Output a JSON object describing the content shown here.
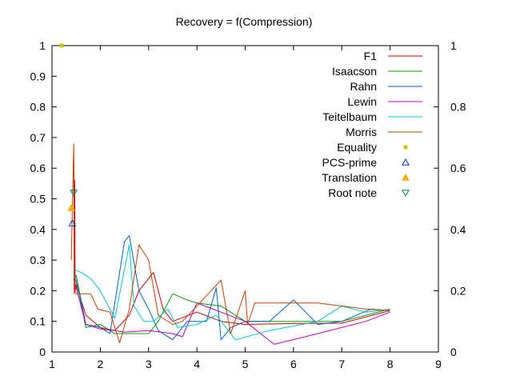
{
  "chart_data": {
    "type": "line",
    "title": "Recovery = f(Compression)",
    "xlabel": "",
    "ylabel": "",
    "xlim": [
      1,
      9
    ],
    "ylim": [
      0,
      1
    ],
    "x_ticks": [
      "1",
      "2",
      "3",
      "4",
      "5",
      "6",
      "7",
      "8",
      "9"
    ],
    "y_ticks": [
      "0",
      "0.1",
      "0.2",
      "0.3",
      "0.4",
      "0.5",
      "0.6",
      "0.7",
      "0.8",
      "0.9",
      "1"
    ],
    "y2_ticks": [
      "0",
      "0.2",
      "0.4",
      "0.6",
      "0.8",
      "1"
    ],
    "grid": false,
    "legend_position": "top-right",
    "series": [
      {
        "name": "F1",
        "kind": "line",
        "color": "#cc0000",
        "points": [
          [
            1.45,
            0.63
          ],
          [
            1.46,
            0.19
          ],
          [
            1.47,
            0.56
          ],
          [
            1.48,
            0.2
          ],
          [
            1.5,
            0.22
          ],
          [
            1.7,
            0.12
          ],
          [
            2.0,
            0.08
          ],
          [
            2.3,
            0.07
          ],
          [
            2.6,
            0.12
          ],
          [
            2.8,
            0.2
          ],
          [
            3.1,
            0.26
          ],
          [
            3.3,
            0.14
          ],
          [
            3.5,
            0.1
          ],
          [
            4.0,
            0.13
          ],
          [
            4.5,
            0.1
          ],
          [
            5.0,
            0.09
          ],
          [
            6.0,
            0.093
          ],
          [
            7.0,
            0.094
          ],
          [
            8.0,
            0.135
          ]
        ]
      },
      {
        "name": "Isaacson",
        "kind": "line",
        "color": "#00a000",
        "points": [
          [
            1.45,
            0.26
          ],
          [
            1.55,
            0.2
          ],
          [
            1.7,
            0.08
          ],
          [
            2.0,
            0.09
          ],
          [
            2.3,
            0.06
          ],
          [
            2.5,
            0.06
          ],
          [
            3.0,
            0.06
          ],
          [
            3.2,
            0.1
          ],
          [
            3.5,
            0.19
          ],
          [
            3.8,
            0.17
          ],
          [
            4.0,
            0.16
          ],
          [
            4.5,
            0.15
          ],
          [
            5.0,
            0.1
          ],
          [
            6.0,
            0.1
          ],
          [
            7.0,
            0.1
          ],
          [
            8.0,
            0.14
          ]
        ]
      },
      {
        "name": "Rahn",
        "kind": "line",
        "color": "#0060c0",
        "points": [
          [
            1.45,
            0.24
          ],
          [
            1.5,
            0.25
          ],
          [
            1.7,
            0.09
          ],
          [
            2.0,
            0.08
          ],
          [
            2.2,
            0.06
          ],
          [
            2.5,
            0.36
          ],
          [
            2.6,
            0.38
          ],
          [
            2.8,
            0.2
          ],
          [
            3.0,
            0.14
          ],
          [
            3.2,
            0.07
          ],
          [
            3.5,
            0.04
          ],
          [
            3.8,
            0.1
          ],
          [
            4.2,
            0.1
          ],
          [
            4.4,
            0.21
          ],
          [
            4.5,
            0.04
          ],
          [
            4.7,
            0.08
          ],
          [
            5.0,
            0.1
          ],
          [
            5.5,
            0.1
          ],
          [
            6.0,
            0.17
          ],
          [
            6.5,
            0.09
          ],
          [
            7.0,
            0.1
          ],
          [
            7.6,
            0.14
          ],
          [
            8.0,
            0.135
          ]
        ]
      },
      {
        "name": "Lewin",
        "kind": "line",
        "color": "#c000c0",
        "points": [
          [
            1.45,
            0.24
          ],
          [
            1.55,
            0.18
          ],
          [
            1.7,
            0.09
          ],
          [
            2.0,
            0.075
          ],
          [
            2.3,
            0.07
          ],
          [
            2.5,
            0.065
          ],
          [
            3.0,
            0.07
          ],
          [
            3.5,
            0.06
          ],
          [
            3.7,
            0.05
          ],
          [
            4.0,
            0.16
          ],
          [
            4.5,
            0.13
          ],
          [
            5.0,
            0.1
          ],
          [
            5.6,
            0.025
          ],
          [
            6.5,
            0.06
          ],
          [
            7.5,
            0.1
          ],
          [
            8.0,
            0.13
          ]
        ]
      },
      {
        "name": "Teitelbaum",
        "kind": "line",
        "color": "#00c8c8",
        "points": [
          [
            1.45,
            0.27
          ],
          [
            1.6,
            0.26
          ],
          [
            1.8,
            0.24
          ],
          [
            2.0,
            0.2
          ],
          [
            2.3,
            0.11
          ],
          [
            2.6,
            0.35
          ],
          [
            2.7,
            0.15
          ],
          [
            2.9,
            0.1
          ],
          [
            3.1,
            0.1
          ],
          [
            3.4,
            0.14
          ],
          [
            3.6,
            0.08
          ],
          [
            4.0,
            0.09
          ],
          [
            4.4,
            0.12
          ],
          [
            4.8,
            0.04
          ],
          [
            5.5,
            0.07
          ],
          [
            6.5,
            0.1
          ],
          [
            7.0,
            0.15
          ],
          [
            7.5,
            0.13
          ],
          [
            8.0,
            0.14
          ]
        ]
      },
      {
        "name": "Morris",
        "kind": "line",
        "color": "#c04000",
        "points": [
          [
            1.4,
            0.3
          ],
          [
            1.45,
            0.68
          ],
          [
            1.47,
            0.2
          ],
          [
            1.5,
            0.19
          ],
          [
            1.8,
            0.19
          ],
          [
            1.95,
            0.14
          ],
          [
            2.2,
            0.13
          ],
          [
            2.4,
            0.03
          ],
          [
            2.6,
            0.14
          ],
          [
            2.8,
            0.35
          ],
          [
            3.0,
            0.3
          ],
          [
            3.2,
            0.12
          ],
          [
            3.5,
            0.09
          ],
          [
            3.7,
            0.1
          ],
          [
            4.0,
            0.15
          ],
          [
            4.5,
            0.235
          ],
          [
            4.7,
            0.06
          ],
          [
            5.0,
            0.2
          ],
          [
            5.05,
            0.09
          ],
          [
            5.2,
            0.16
          ],
          [
            6.5,
            0.16
          ],
          [
            7.5,
            0.14
          ],
          [
            8.0,
            0.135
          ]
        ]
      },
      {
        "name": "Equality",
        "kind": "points",
        "marker": "square",
        "color": "#c8c800",
        "points": [
          [
            1.2,
            1.0
          ]
        ]
      },
      {
        "name": "PCS-prime",
        "kind": "points",
        "marker": "triangle-open",
        "color": "#0040c0",
        "points": [
          [
            1.42,
            0.42
          ]
        ]
      },
      {
        "name": "Translation",
        "kind": "points",
        "marker": "triangle-filled",
        "color": "#f0b000",
        "points": [
          [
            1.4,
            0.47
          ]
        ]
      },
      {
        "name": "Root note",
        "kind": "points",
        "marker": "triangle-down-open",
        "color": "#008060",
        "points": [
          [
            1.45,
            0.52
          ]
        ]
      }
    ]
  }
}
